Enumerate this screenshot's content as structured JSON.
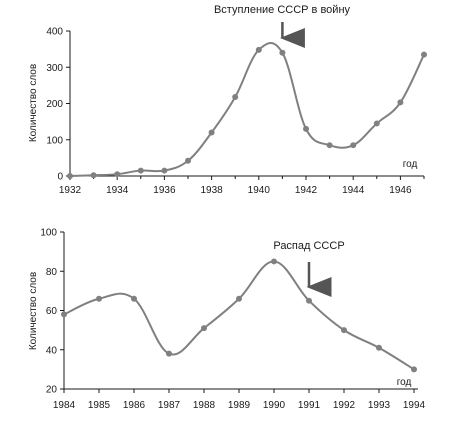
{
  "chart_data": [
    {
      "type": "line",
      "title": "",
      "xlabel": "год",
      "ylabel": "Количество слов",
      "xlim": [
        1932,
        1947
      ],
      "ylim": [
        0,
        400
      ],
      "x_ticks": [
        1932,
        1934,
        1936,
        1938,
        1940,
        1942,
        1944,
        1946
      ],
      "y_ticks": [
        0,
        100,
        200,
        300,
        400
      ],
      "grid": false,
      "series": [
        {
          "x": [
            1932,
            1933,
            1934,
            1935,
            1936,
            1937,
            1938,
            1939,
            1940,
            1941,
            1942,
            1943,
            1944,
            1945,
            1946,
            1947
          ],
          "values": [
            0,
            2,
            5,
            15,
            15,
            42,
            120,
            218,
            348,
            340,
            130,
            85,
            85,
            145,
            203,
            335
          ]
        }
      ],
      "annotation": {
        "text": "Вступление СССР в войну",
        "x": 1941
      }
    },
    {
      "type": "line",
      "title": "",
      "xlabel": "год",
      "ylabel": "Количество слов",
      "xlim": [
        1984,
        1994
      ],
      "ylim": [
        20,
        100
      ],
      "x_ticks": [
        1984,
        1985,
        1986,
        1987,
        1988,
        1989,
        1990,
        1991,
        1992,
        1993,
        1994
      ],
      "y_ticks": [
        20,
        40,
        60,
        80,
        100
      ],
      "grid": false,
      "series": [
        {
          "x": [
            1984,
            1985,
            1986,
            1987,
            1988,
            1989,
            1990,
            1991,
            1992,
            1993,
            1994
          ],
          "values": [
            58,
            66,
            66,
            38,
            51,
            66,
            85,
            65,
            50,
            41,
            30
          ]
        }
      ],
      "annotation": {
        "text": "Распад СССР",
        "x": 1991
      }
    }
  ],
  "colors": {
    "line": "#808080",
    "marker": "#808080",
    "axis": "#1a1a1a",
    "arrow": "#555555"
  }
}
